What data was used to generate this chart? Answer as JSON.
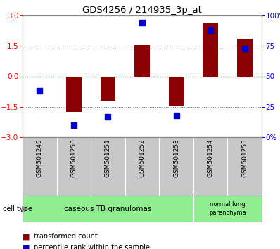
{
  "title": "GDS4256 / 214935_3p_at",
  "samples": [
    "GSM501249",
    "GSM501250",
    "GSM501251",
    "GSM501252",
    "GSM501253",
    "GSM501254",
    "GSM501255"
  ],
  "transformed_count": [
    0.0,
    -1.75,
    -1.2,
    1.55,
    -1.45,
    2.65,
    1.85
  ],
  "percentile_rank_raw": [
    38,
    10,
    17,
    94,
    18,
    88,
    73
  ],
  "bar_color": "#8B0000",
  "dot_color": "#0000CC",
  "ylim": [
    -3,
    3
  ],
  "y2lim": [
    0,
    100
  ],
  "yticks_left": [
    -3,
    -1.5,
    0,
    1.5,
    3
  ],
  "y2ticks": [
    0,
    25,
    50,
    75,
    100
  ],
  "y2labels": [
    "0%",
    "25",
    "50",
    "75",
    "100%"
  ],
  "zero_line_color": "#CC0000",
  "dotted_color": "#555555",
  "legend_items": [
    {
      "label": "transformed count",
      "color": "#8B0000"
    },
    {
      "label": "percentile rank within the sample",
      "color": "#0000CC"
    }
  ],
  "bar_width": 0.45,
  "dot_size": 35,
  "plot_bg_color": "#ffffff",
  "xlabel_area_bg": "#C8C8C8",
  "cell_type_bg": "#90EE90",
  "cell_type_border_color": "#555555"
}
